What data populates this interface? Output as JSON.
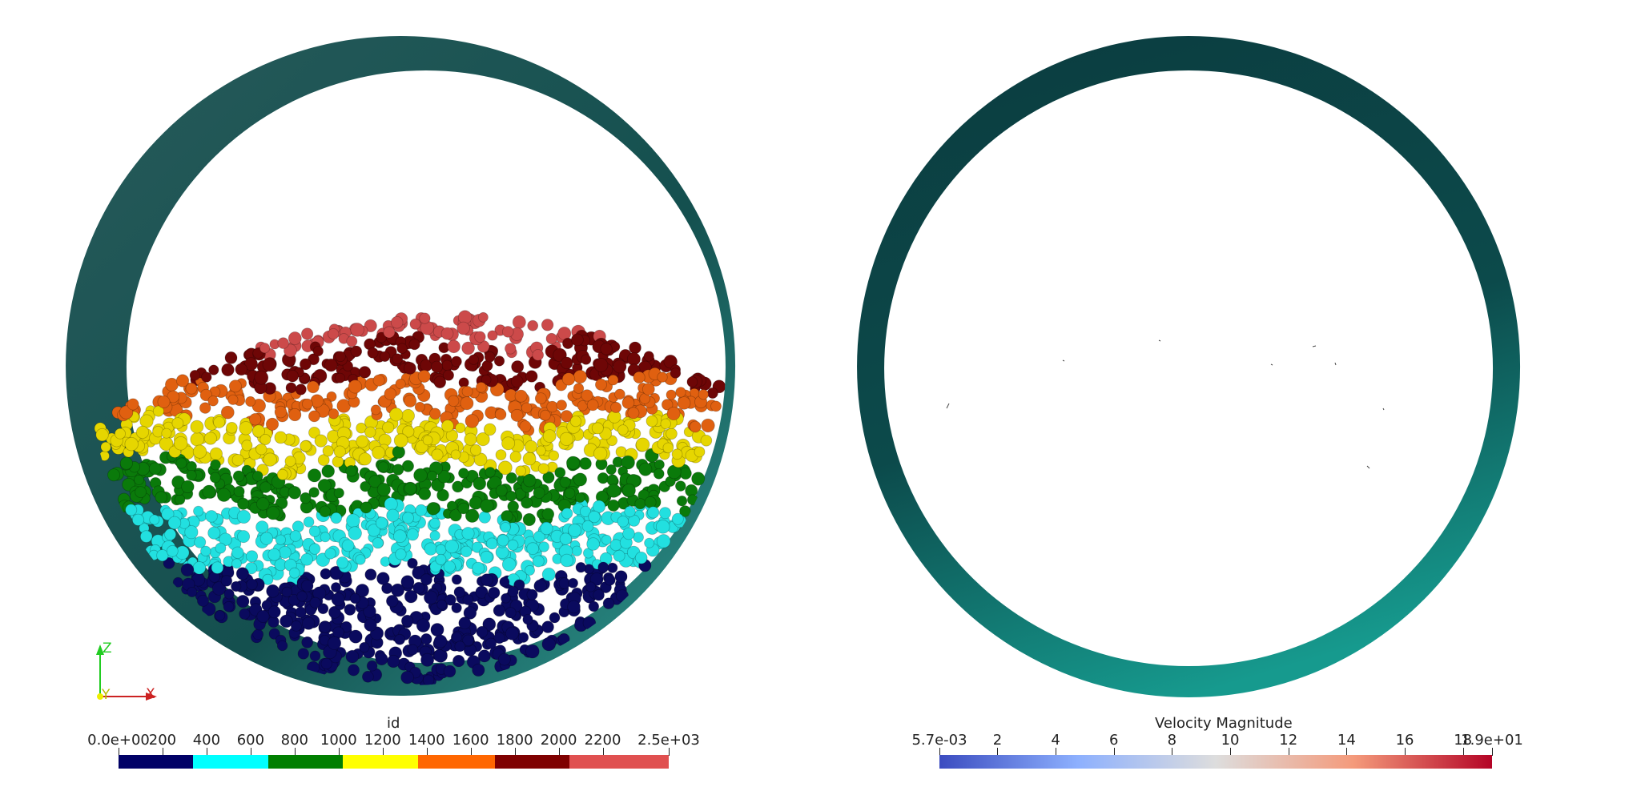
{
  "left_view": {
    "colorbar": {
      "title": "id",
      "ticks": [
        "0.0e+00",
        "200",
        "400",
        "600",
        "800",
        "1000",
        "1200",
        "1400",
        "1600",
        "1800",
        "2000",
        "2200",
        "2.5e+03"
      ],
      "tick_values": [
        0,
        200,
        400,
        600,
        800,
        1000,
        1200,
        1400,
        1600,
        1800,
        2000,
        2200,
        2500
      ],
      "range": [
        0,
        2500
      ],
      "bands": [
        {
          "from": 0,
          "to": 340,
          "color": "#000066"
        },
        {
          "from": 340,
          "to": 680,
          "color": "#00ffff"
        },
        {
          "from": 680,
          "to": 1020,
          "color": "#007f00"
        },
        {
          "from": 1020,
          "to": 1360,
          "color": "#ffff00"
        },
        {
          "from": 1360,
          "to": 1710,
          "color": "#ff6600"
        },
        {
          "from": 1710,
          "to": 2050,
          "color": "#7f0000"
        },
        {
          "from": 2050,
          "to": 2500,
          "color": "#e05050"
        }
      ]
    },
    "axes": {
      "z": "Z",
      "y": "Y",
      "x": "X",
      "z_color": "#22cc22",
      "x_color": "#cc2222",
      "y_color": "#eeee00"
    },
    "layers": [
      {
        "name": "blue",
        "color": "#0a0a5e"
      },
      {
        "name": "cyan",
        "color": "#22e0e0"
      },
      {
        "name": "green",
        "color": "#0a7a0a"
      },
      {
        "name": "yellow",
        "color": "#e6d600"
      },
      {
        "name": "orange",
        "color": "#e06010"
      },
      {
        "name": "darkred",
        "color": "#6e0606"
      },
      {
        "name": "salmon",
        "color": "#cc4a4a"
      }
    ],
    "drum_color": "#1a5a5a"
  },
  "right_view": {
    "colorbar": {
      "title": "Velocity Magnitude",
      "ticks": [
        "5.7e-03",
        "2",
        "4",
        "6",
        "8",
        "10",
        "12",
        "14",
        "16",
        "18",
        "1.9e+01"
      ],
      "tick_values": [
        0.0057,
        2,
        4,
        6,
        8,
        10,
        12,
        14,
        16,
        18,
        19
      ],
      "range": [
        0.0057,
        19
      ],
      "colors": [
        "#3b4cc0",
        "#8db0fe",
        "#dddddd",
        "#f49a7b",
        "#b40426"
      ]
    },
    "drum_color": "#0f6a6a"
  }
}
